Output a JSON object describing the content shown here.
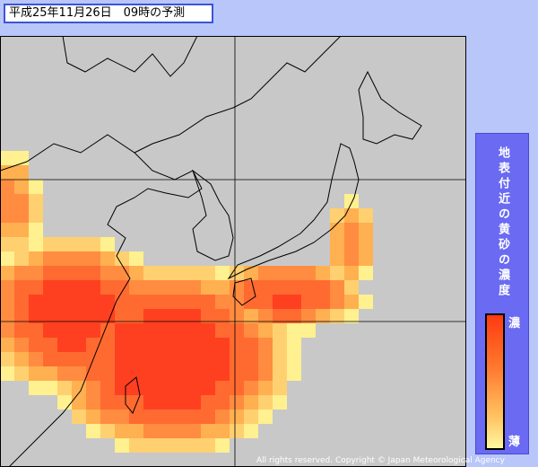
{
  "header": {
    "title": "平成25年11月26日　09時の予測"
  },
  "legend": {
    "title": "地表付近の黄砂の濃度",
    "high": "濃",
    "low": "薄"
  },
  "footer": {
    "copyright": "All rights reserved. Copyright © Japan Meteorological Agency"
  }
}
